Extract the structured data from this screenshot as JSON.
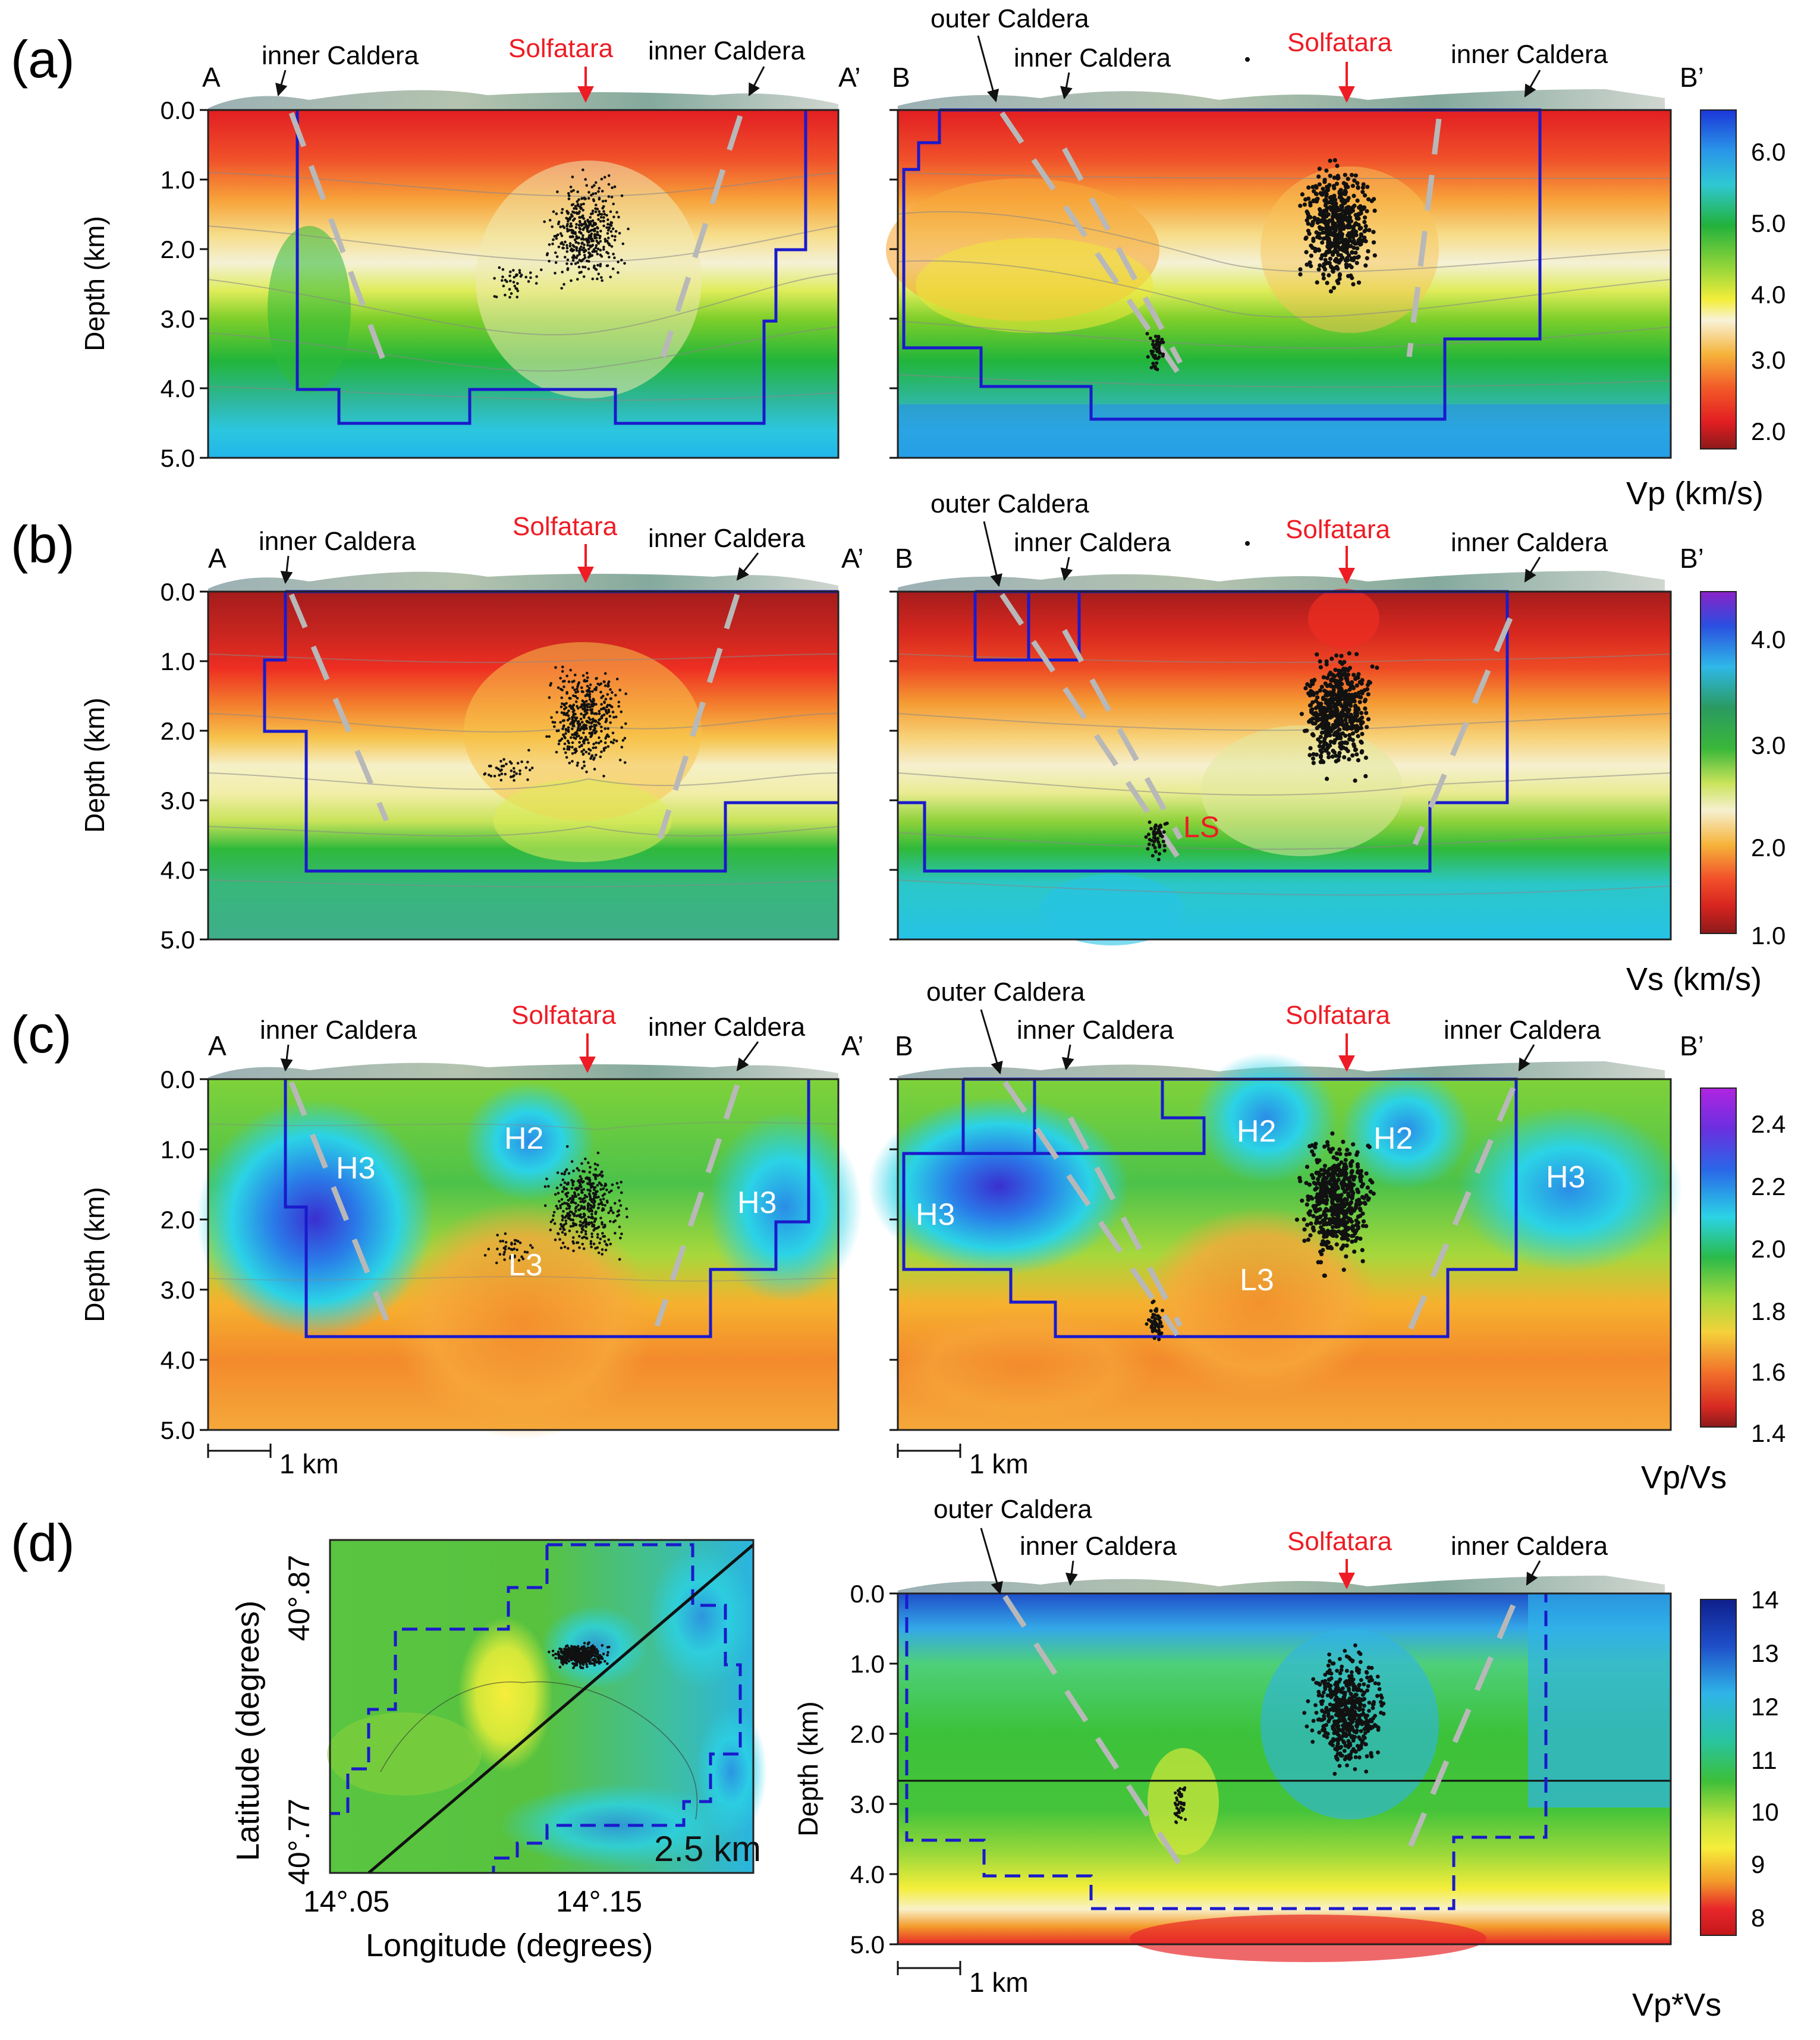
{
  "figure": {
    "panel_letters": [
      "(a)",
      "(b)",
      "(c)",
      "(d)"
    ],
    "depth_axis_label": "Depth (km)",
    "depth_ticks": [
      "0.0",
      "1.0",
      "2.0",
      "3.0",
      "4.0",
      "5.0"
    ],
    "scale_bar_label": "1 km",
    "labels": {
      "point_a": "A",
      "point_a_prime": "A’",
      "point_b": "B",
      "point_b_prime": "B’",
      "inner_caldera": "inner Caldera",
      "outer_caldera": "outer Caldera",
      "solfatara": "Solfatara",
      "ls": "LS",
      "h2": "H2",
      "h3": "H3",
      "l3": "L3"
    },
    "colorbars": {
      "vp": {
        "title": "Vp (km/s)",
        "ticks": [
          "6.0",
          "5.0",
          "4.0",
          "3.0",
          "2.0"
        ]
      },
      "vs": {
        "title": "Vs (km/s)",
        "ticks": [
          "4.0",
          "3.0",
          "2.0",
          "1.0"
        ]
      },
      "vpvs": {
        "title": "Vp/Vs",
        "ticks": [
          "2.4",
          "2.2",
          "2.0",
          "1.8",
          "1.6",
          "1.4"
        ]
      },
      "vpvs_product": {
        "title": "Vp*Vs",
        "ticks": [
          "14",
          "13",
          "12",
          "11",
          "10",
          "9",
          "8"
        ]
      }
    },
    "map": {
      "y_axis_label": "Latitude (degrees)",
      "x_axis_label": "Longitude (degrees)",
      "lat_ticks": [
        "40°.87",
        "40°.77"
      ],
      "lon_ticks": [
        "14°.05",
        "14°.15"
      ],
      "depth_label": "2.5 km"
    },
    "colors": {
      "annotation_red": "#ee1c24",
      "boundary_blue": "#1a1acc",
      "fault_gray": "#b8b8b8"
    }
  }
}
